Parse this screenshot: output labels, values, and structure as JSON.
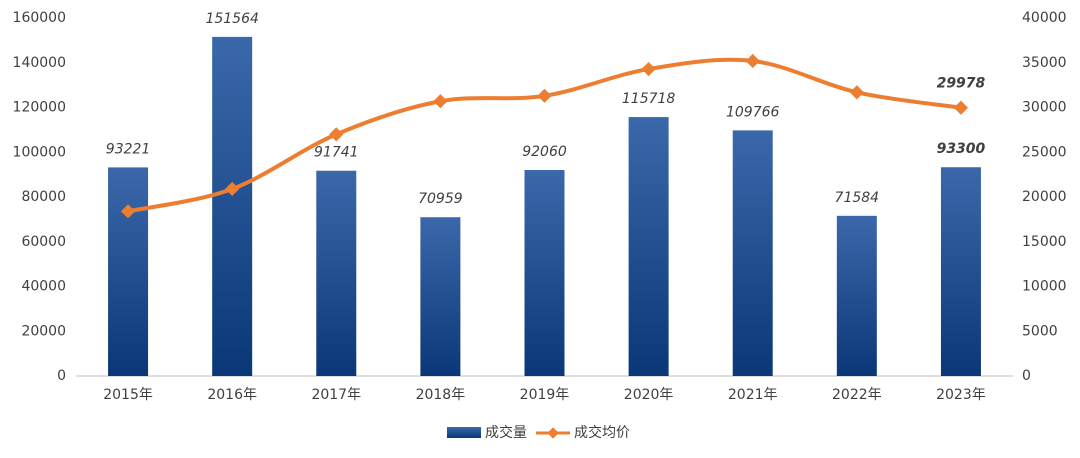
{
  "chart_data": {
    "type": "bar-line",
    "categories": [
      "2015年",
      "2016年",
      "2017年",
      "2018年",
      "2019年",
      "2020年",
      "2021年",
      "2022年",
      "2023年"
    ],
    "series": [
      {
        "name": "成交量",
        "type": "bar",
        "color": "#2f5e9e",
        "values": [
          93221,
          151564,
          91741,
          70959,
          92060,
          115718,
          109766,
          71584,
          93300
        ]
      },
      {
        "name": "成交均价",
        "type": "line",
        "axis": "y2",
        "color": "#ed7d31",
        "values": [
          18400,
          20900,
          27000,
          30700,
          31300,
          34300,
          35200,
          31700,
          29978
        ]
      }
    ],
    "ylim": [
      0,
      160000
    ],
    "yticks": [
      0,
      20000,
      40000,
      60000,
      80000,
      100000,
      120000,
      140000,
      160000
    ],
    "y2lim": [
      0,
      40000
    ],
    "y2ticks": [
      0,
      5000,
      10000,
      15000,
      20000,
      25000,
      30000,
      35000,
      40000
    ],
    "grid": false,
    "legend": "bottom"
  }
}
